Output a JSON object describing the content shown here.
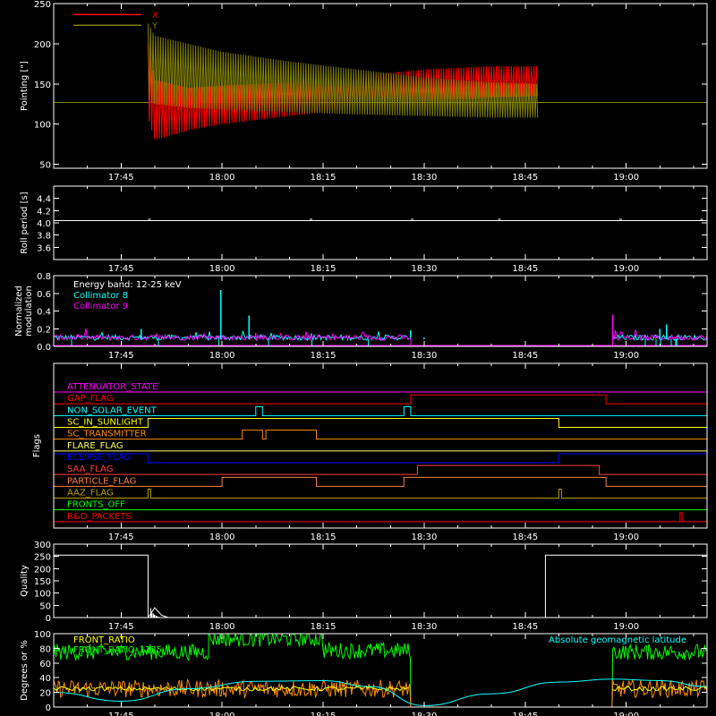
{
  "chart_data": [
    {
      "type": "line",
      "id": "pointing",
      "ylabel": "Pointing [\"]",
      "ylim": [
        45,
        250
      ],
      "yticks": [
        50,
        100,
        150,
        200,
        250
      ],
      "xlim": [
        "17:35",
        "19:12"
      ],
      "xticks": [
        "17:45",
        "18:00",
        "18:15",
        "18:30",
        "18:45",
        "19:00"
      ],
      "legend": "top-left",
      "series": [
        {
          "name": "X",
          "color": "#ff0000",
          "envelope": {
            "t": [
              "17:49",
              "17:50",
              "17:55",
              "18:00",
              "18:10",
              "18:20",
              "18:30",
              "18:40",
              "18:47"
            ],
            "upper": [
              200,
              155,
              145,
              148,
              152,
              160,
              168,
              172,
              172
            ],
            "lower": [
              108,
              80,
              92,
              100,
              110,
              120,
              128,
              133,
              135
            ]
          }
        },
        {
          "name": "Y",
          "color": "#808000",
          "envelope": {
            "t": [
              "17:49",
              "17:50",
              "17:55",
              "18:00",
              "18:10",
              "18:20",
              "18:30",
              "18:40",
              "18:47"
            ],
            "upper": [
              225,
              210,
              200,
              190,
              178,
              168,
              158,
              152,
              150
            ],
            "lower": [
              130,
              125,
              120,
              118,
              115,
              112,
              110,
              108,
              108
            ]
          }
        }
      ],
      "baseline": 127
    },
    {
      "type": "line",
      "id": "roll-period",
      "ylabel": "Roll period [s]",
      "ylim": [
        3.4,
        4.6
      ],
      "yticks": [
        3.6,
        3.8,
        4.0,
        4.2,
        4.4
      ],
      "xlim": [
        "17:35",
        "19:12"
      ],
      "xticks": [
        "17:45",
        "18:00",
        "18:15",
        "18:30",
        "18:45",
        "19:00"
      ],
      "series": [
        {
          "name": "",
          "color": "#ffffff",
          "value": 4.04
        }
      ]
    },
    {
      "type": "line",
      "id": "modulation",
      "ylabel": "Normalized modulation",
      "ylim": [
        0,
        0.8
      ],
      "yticks": [
        0.0,
        0.2,
        0.4,
        0.6,
        0.8
      ],
      "xlim": [
        "17:35",
        "19:12"
      ],
      "xticks": [
        "17:45",
        "18:00",
        "18:15",
        "18:30",
        "18:45",
        "19:00"
      ],
      "legend_title": "Energy band: 12-25 keV",
      "series": [
        {
          "name": "Collimator 8",
          "color": "#00ffff",
          "spikes": {
            "t": [
              "17:59.8",
              "18:04",
              "17:48",
              "18:28",
              "18:30",
              "19:05",
              "19:06"
            ],
            "v": [
              0.64,
              0.35,
              0.2,
              0.18,
              0.1,
              0.2,
              0.25
            ]
          }
        },
        {
          "name": "Collimator 9",
          "color": "#ff00ff",
          "spikes": {
            "t": [
              "18:58",
              "18:05"
            ],
            "v": [
              0.36,
              0.15
            ]
          }
        }
      ],
      "data_windows": [
        [
          "17:35",
          "18:28"
        ],
        [
          "18:58",
          "19:12"
        ]
      ]
    },
    {
      "type": "line",
      "id": "flags",
      "ylabel": "Flags",
      "xlim": [
        "17:35",
        "19:12"
      ],
      "xticks": [
        "17:45",
        "18:00",
        "18:15",
        "18:30",
        "18:45",
        "19:00"
      ],
      "series": [
        {
          "name": "ATTENUATOR_STATE",
          "color": "#ff00ff",
          "on": []
        },
        {
          "name": "GAP_FLAG",
          "color": "#ff0000",
          "on": [
            [
              "18:28",
              "18:57"
            ]
          ]
        },
        {
          "name": "NON_SOLAR_EVENT",
          "color": "#00ffff",
          "on": [
            [
              "18:05",
              "18:06"
            ],
            [
              "18:27",
              "18:28"
            ]
          ]
        },
        {
          "name": "SC_IN_SUNLIGHT",
          "color": "#ffff00",
          "on": [
            [
              "17:49",
              "18:50"
            ]
          ]
        },
        {
          "name": "SC_TRANSMITTER",
          "color": "#ff8c00",
          "on": [
            [
              "18:03",
              "18:06"
            ],
            [
              "18:06.5",
              "18:14"
            ]
          ]
        },
        {
          "name": "FLARE_FLAG",
          "color": "#ffff66",
          "on": []
        },
        {
          "name": "ECLIPSE_FLAG",
          "color": "#0000ff",
          "on": [
            [
              "17:35",
              "17:49"
            ],
            [
              "18:50",
              "19:12"
            ]
          ]
        },
        {
          "name": "SAA_FLAG",
          "color": "#ff4040",
          "on": [
            [
              "18:29",
              "18:56"
            ]
          ]
        },
        {
          "name": "PARTICLE_FLAG",
          "color": "#ff8040",
          "on": [
            [
              "18:00",
              "18:14"
            ],
            [
              "18:27",
              "18:57"
            ]
          ]
        },
        {
          "name": "AAZ_FLAG",
          "color": "#b8a000",
          "on": [
            [
              "17:49",
              "17:49.4"
            ],
            [
              "18:50",
              "18:50.4"
            ]
          ]
        },
        {
          "name": "FRONTS_OFF",
          "color": "#00ff00",
          "on": []
        },
        {
          "name": "R&D_PACKETS",
          "color": "#ff0000",
          "on": [
            [
              "19:08",
              "19:08.3"
            ]
          ]
        }
      ]
    },
    {
      "type": "line",
      "id": "quality",
      "ylabel": "Quality",
      "ylim": [
        0,
        300
      ],
      "yticks": [
        0,
        50,
        100,
        150,
        200,
        250,
        300
      ],
      "xlim": [
        "17:35",
        "19:12"
      ],
      "xticks": [
        "17:45",
        "18:00",
        "18:15",
        "18:30",
        "18:45",
        "19:00"
      ],
      "series": [
        {
          "name": "",
          "color": "#ffffff",
          "points": {
            "t": [
              "17:35",
              "17:49",
              "17:49",
              "17:50",
              "17:51",
              "17:52",
              "17:52",
              "18:48",
              "18:48",
              "19:12"
            ],
            "v": [
              255,
              255,
              0,
              40,
              10,
              0,
              0,
              0,
              255,
              255
            ]
          }
        }
      ]
    },
    {
      "type": "line",
      "id": "geomagnetic",
      "ylabel": "Degrees or %",
      "ylim": [
        0,
        100
      ],
      "yticks": [
        0,
        20,
        40,
        60,
        80,
        100
      ],
      "xlim": [
        "17:35",
        "19:12"
      ],
      "xticks": [
        "17:45",
        "18:00",
        "18:15",
        "18:30",
        "18:45",
        "19:00"
      ],
      "series": [
        {
          "name": "FRONT_RATIO",
          "color": "#ffff00"
        },
        {
          "name": "FRONT_RATIO_1225",
          "color": "#00ff00",
          "levels": {
            "t": [
              "17:35",
              "17:58",
              "17:58",
              "18:15",
              "18:15",
              "18:28",
              "18:28",
              "18:58",
              "18:58",
              "19:12"
            ],
            "v": [
              75,
              75,
              93,
              93,
              77,
              77,
              0,
              0,
              75,
              75
            ]
          }
        },
        {
          "name": "Absolute geomagnetic latitude",
          "color": "#00ffff",
          "points": {
            "t": [
              "17:35",
              "17:45",
              "17:55",
              "18:05",
              "18:15",
              "18:22",
              "18:30",
              "18:40",
              "18:50",
              "18:58",
              "19:05",
              "19:12"
            ],
            "v": [
              20,
              8,
              25,
              35,
              36,
              28,
              2,
              18,
              34,
              38,
              36,
              28
            ]
          }
        },
        {
          "name": "",
          "color": "#ff8c00",
          "levels": {
            "t": [
              "17:35",
              "18:28",
              "18:28",
              "18:58",
              "18:58",
              "19:12"
            ],
            "v": [
              25,
              25,
              0,
              0,
              25,
              25
            ]
          }
        }
      ]
    }
  ]
}
